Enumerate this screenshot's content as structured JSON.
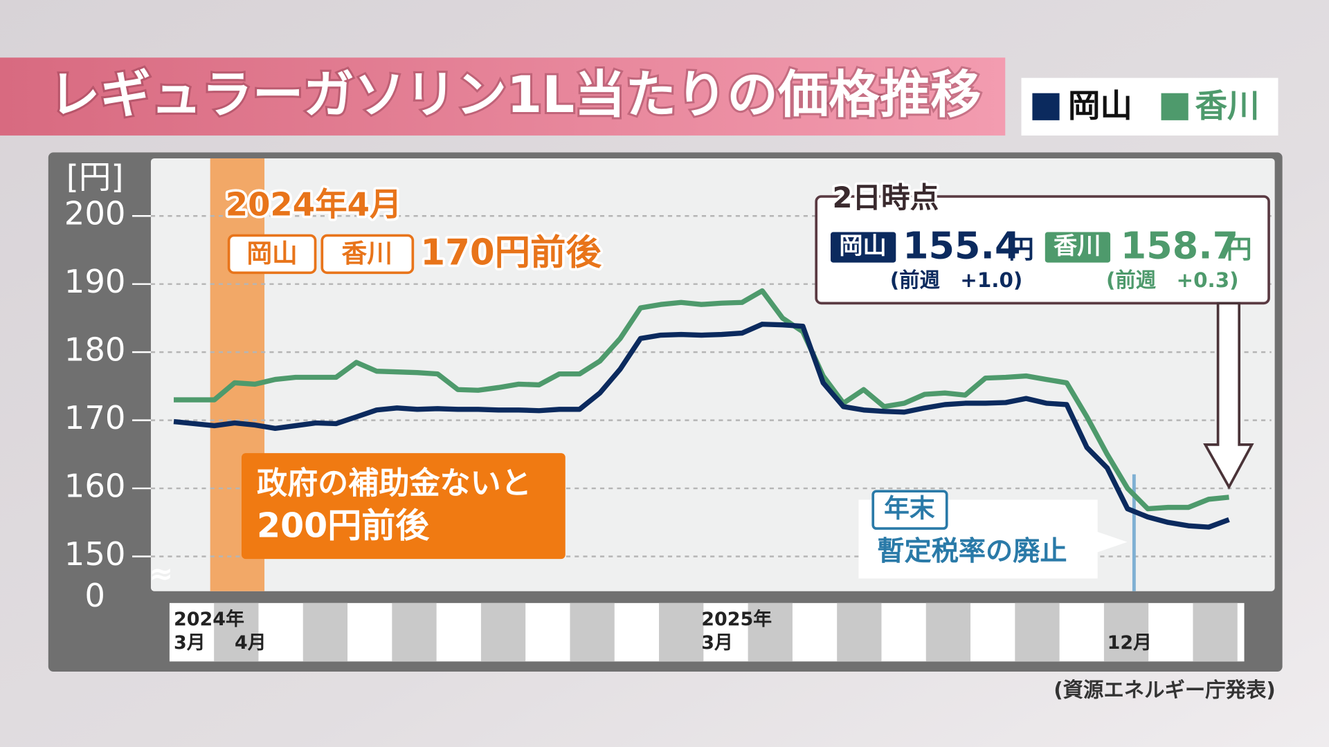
{
  "chart_data": {
    "type": "line",
    "title": "レギュラーガソリン1L当たりの価格推移",
    "y_axis_label": "[円]",
    "source": "(資源エネルギー庁発表)",
    "ylim": [
      0,
      200
    ],
    "yticks": [
      0,
      150,
      160,
      170,
      180,
      190,
      200
    ],
    "axis_break": [
      0,
      150
    ],
    "grid": true,
    "legend": "top-right",
    "categories": [
      "3月",
      null,
      null,
      "4月",
      null,
      null,
      null,
      null,
      null,
      null,
      null,
      null,
      null,
      null,
      null,
      null,
      null,
      null,
      null,
      null,
      null,
      null,
      null,
      null,
      null,
      null,
      "3月",
      null,
      null,
      null,
      null,
      null,
      null,
      null,
      null,
      null,
      null,
      null,
      null,
      null,
      null,
      null,
      null,
      null,
      null,
      null,
      "12月",
      null,
      null,
      null,
      null,
      null,
      null
    ],
    "category_years": [
      "2024年",
      null,
      null,
      null,
      null,
      null,
      null,
      null,
      null,
      null,
      null,
      null,
      null,
      null,
      null,
      null,
      null,
      null,
      null,
      null,
      null,
      null,
      null,
      null,
      null,
      null,
      "2025年",
      null,
      null,
      null,
      null,
      null,
      null,
      null,
      null,
      null,
      null,
      null,
      null,
      null,
      null,
      null,
      null,
      null,
      null,
      null,
      null,
      null,
      null,
      null,
      null,
      null,
      null
    ],
    "series": [
      {
        "name": "岡山",
        "color": "#0b2a5e",
        "values": [
          169.8,
          169.5,
          169.2,
          169.6,
          169.3,
          168.8,
          169.2,
          169.6,
          169.5,
          170.5,
          171.5,
          171.8,
          171.6,
          171.7,
          171.6,
          171.6,
          171.5,
          171.5,
          171.4,
          171.6,
          171.6,
          174,
          177.5,
          182,
          182.5,
          182.6,
          182.5,
          182.6,
          182.8,
          184.1,
          184,
          183.8,
          175.5,
          172,
          171.5,
          171.3,
          171.2,
          171.8,
          172.3,
          172.5,
          172.5,
          172.6,
          173.2,
          172.5,
          172.3,
          166,
          163,
          157,
          155.8,
          155,
          154.5,
          154.3,
          155.4
        ]
      },
      {
        "name": "香川",
        "color": "#4e9a6c",
        "values": [
          173,
          173,
          173,
          175.5,
          175.3,
          176,
          176.3,
          176.3,
          176.3,
          178.5,
          177.2,
          177.1,
          177,
          176.8,
          174.5,
          174.4,
          174.8,
          175.3,
          175.2,
          176.8,
          176.8,
          178.7,
          182,
          186.5,
          187,
          187.3,
          187,
          187.2,
          187.3,
          189,
          185,
          183,
          176.5,
          172.5,
          174.5,
          172,
          172.5,
          173.8,
          174,
          173.7,
          176.2,
          176.3,
          176.5,
          176,
          175.5,
          170.5,
          165,
          160,
          157,
          157.2,
          157.2,
          158.4,
          158.7
        ]
      }
    ],
    "annotations": {
      "april": {
        "heading": "2024年4月",
        "tags": [
          "岡山",
          "香川"
        ],
        "text": "170円前後"
      },
      "no_subsidy": {
        "lines": [
          "政府の補助金ないと",
          "200円前後"
        ]
      },
      "latest": {
        "heading": "2日時点",
        "unit": "円",
        "entries": [
          {
            "name": "岡山",
            "value": "155.4",
            "change": "(前週　+1.0)"
          },
          {
            "name": "香川",
            "value": "158.7",
            "change": "(前週　+0.3)"
          }
        ]
      },
      "year_end": {
        "tag": "年末",
        "text": "暫定税率の廃止"
      }
    }
  }
}
